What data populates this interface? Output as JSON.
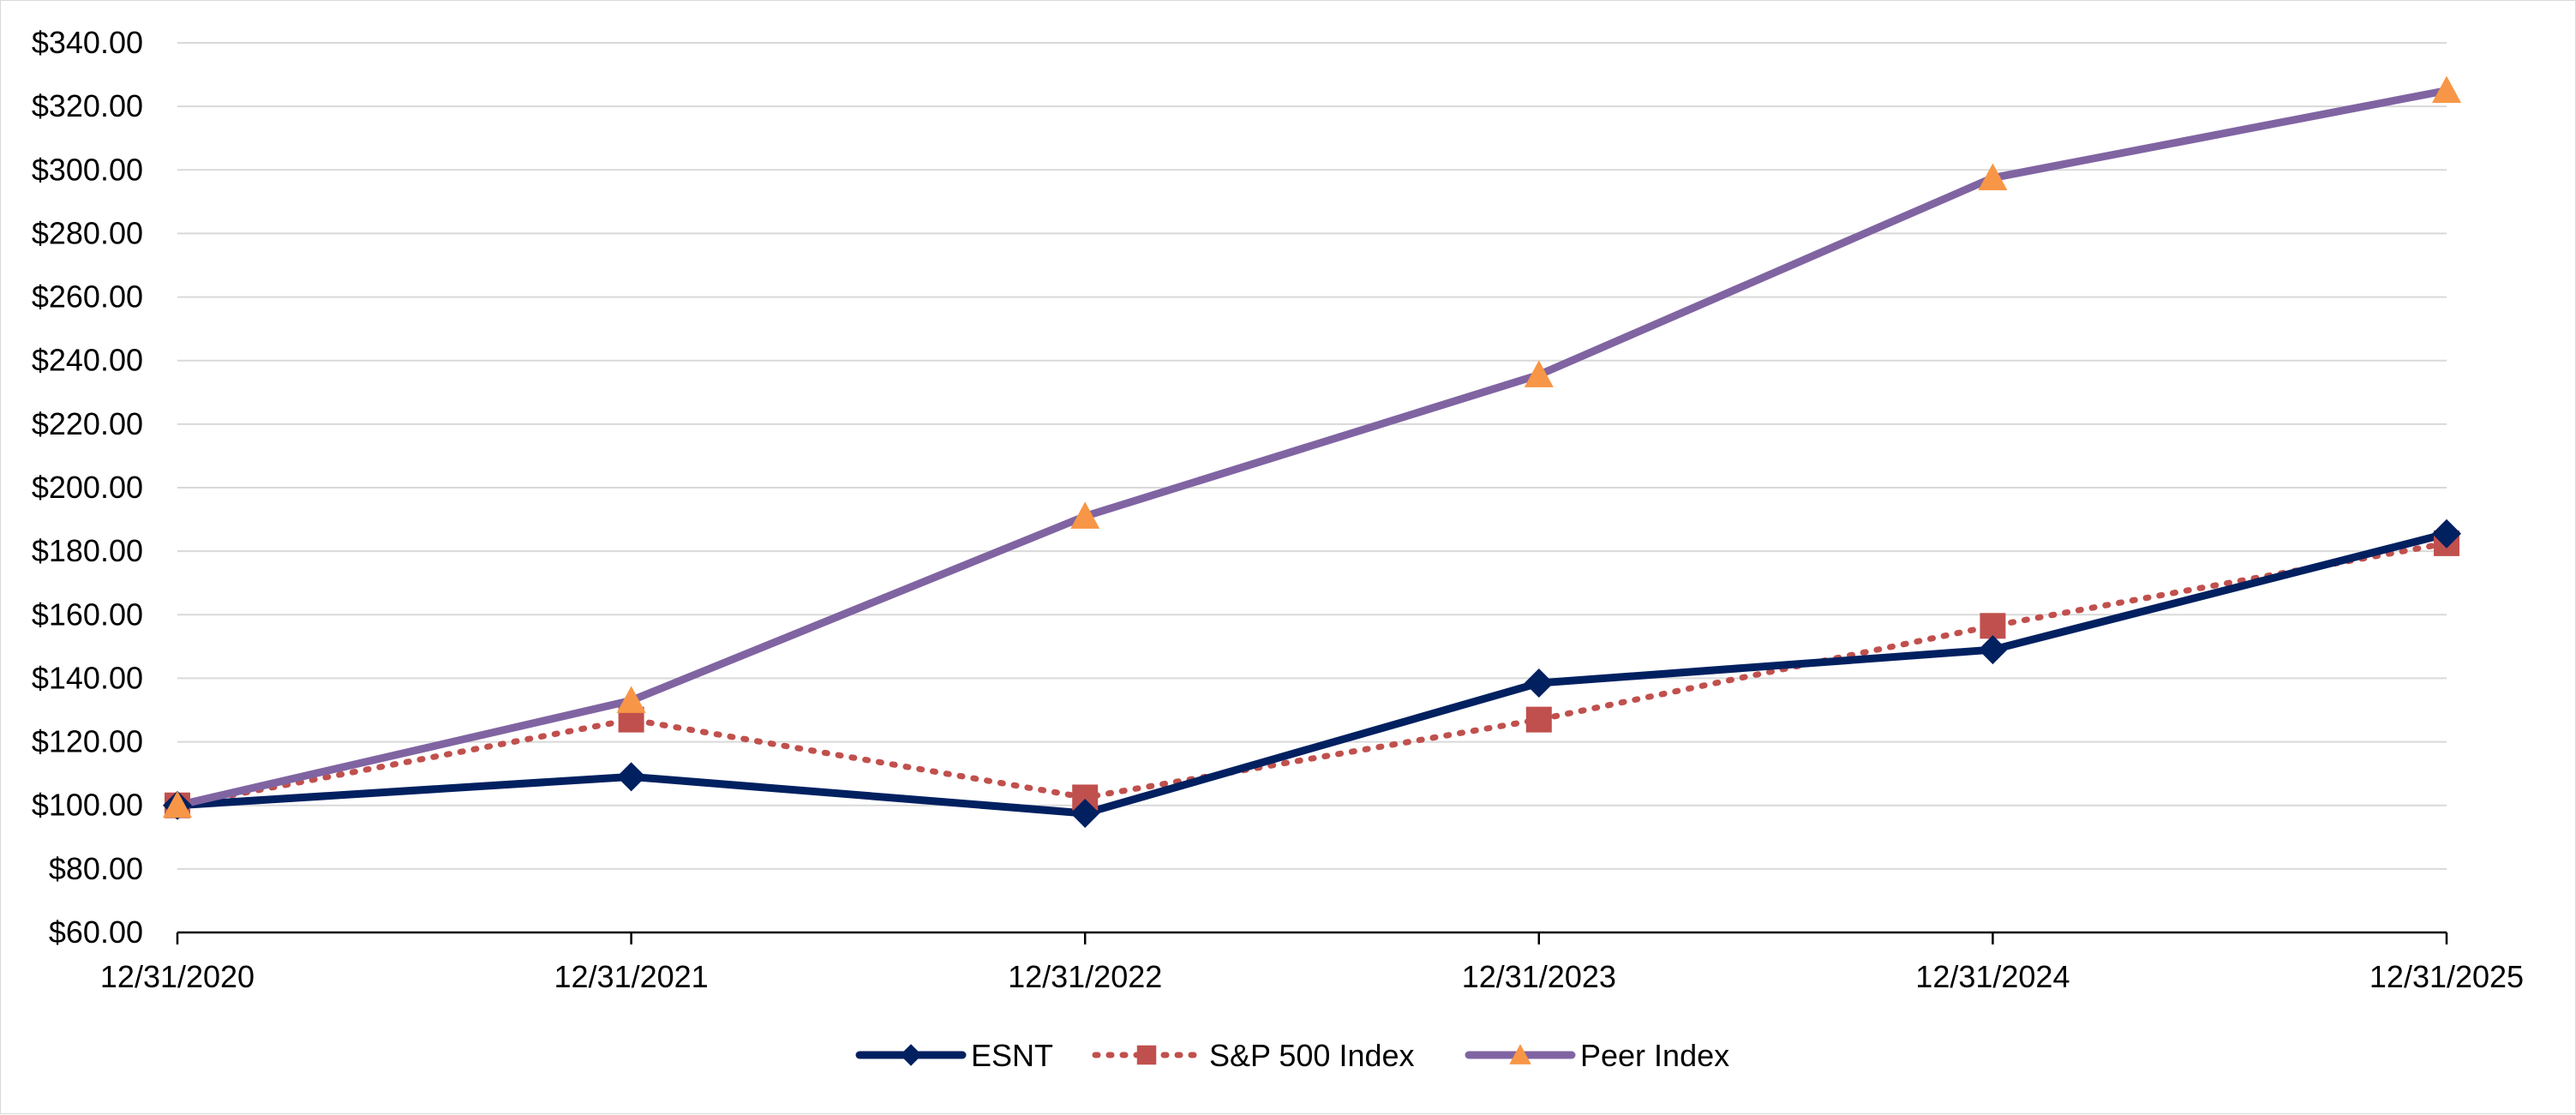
{
  "chart_data": {
    "type": "line",
    "title": "",
    "xlabel": "",
    "ylabel": "",
    "categories": [
      "12/31/2020",
      "12/31/2021",
      "12/31/2022",
      "12/31/2023",
      "12/31/2024",
      "12/31/2025"
    ],
    "ylim": [
      60,
      340
    ],
    "yticks": [
      60,
      80,
      100,
      120,
      140,
      160,
      180,
      200,
      220,
      240,
      260,
      280,
      300,
      320,
      340
    ],
    "ytick_labels": [
      "$60.00",
      "$80.00",
      "$100.00",
      "$120.00",
      "$140.00",
      "$160.00",
      "$180.00",
      "$200.00",
      "$220.00",
      "$240.00",
      "$260.00",
      "$280.00",
      "$300.00",
      "$320.00",
      "$340.00"
    ],
    "grid": "horizontal",
    "legend_position": "bottom-center",
    "series": [
      {
        "name": "ESNT",
        "values": [
          100.0,
          109.0,
          97.5,
          138.5,
          149.0,
          185.5
        ],
        "color": "#002060",
        "line_style": "solid",
        "marker": "diamond",
        "marker_color": "#002060"
      },
      {
        "name": "S&P 500 Index",
        "values": [
          100.0,
          127.0,
          102.5,
          127.0,
          156.5,
          182.5
        ],
        "color": "#c0504d",
        "line_style": "dotted",
        "marker": "square",
        "marker_color": "#c0504d"
      },
      {
        "name": "Peer Index",
        "values": [
          100.0,
          133.0,
          191.0,
          235.5,
          297.5,
          325.0
        ],
        "color": "#8064a2",
        "line_style": "solid",
        "marker": "triangle",
        "marker_color": "#f79646"
      }
    ]
  }
}
